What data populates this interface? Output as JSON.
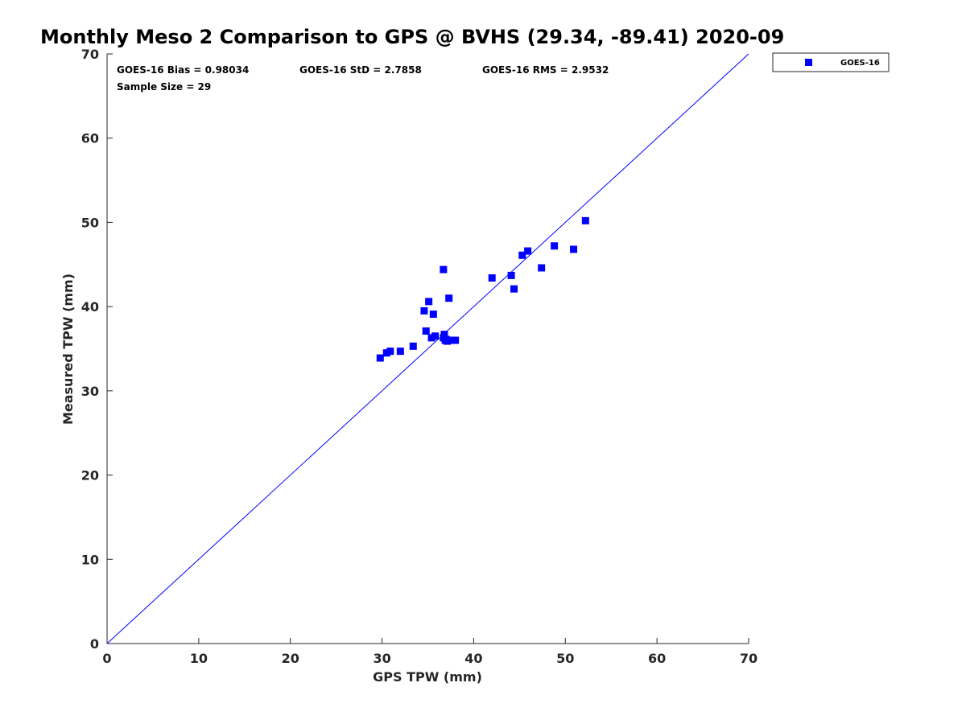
{
  "chart_data": {
    "type": "scatter",
    "title": "Monthly Meso 2 Comparison to GPS @ BVHS (29.34, -89.41) 2020-09",
    "xlabel": "GPS TPW (mm)",
    "ylabel": "Measured TPW (mm)",
    "xlim": [
      0,
      70
    ],
    "ylim": [
      0,
      70
    ],
    "xticks": [
      "0",
      "10",
      "20",
      "30",
      "40",
      "50",
      "60",
      "70"
    ],
    "yticks": [
      "0",
      "10",
      "20",
      "30",
      "40",
      "50",
      "60",
      "70"
    ],
    "grid": false,
    "legend_position": "top-right-outside",
    "reference_line": {
      "name": "1:1 line",
      "x": [
        0,
        70
      ],
      "y": [
        0,
        70
      ],
      "color": "#0000ff"
    },
    "annotations": {
      "bias": "GOES-16 Bias = 0.98034",
      "std": "GOES-16 StD = 2.7858",
      "rms": "GOES-16 RMS = 2.9532",
      "sample_size": "Sample Size = 29"
    },
    "series": [
      {
        "name": "GOES-16",
        "color": "#0000ff",
        "marker": "square",
        "points": [
          [
            29.8,
            33.9
          ],
          [
            30.5,
            34.5
          ],
          [
            30.9,
            34.7
          ],
          [
            32.0,
            34.7
          ],
          [
            33.4,
            35.3
          ],
          [
            34.6,
            39.5
          ],
          [
            34.8,
            37.1
          ],
          [
            35.1,
            40.6
          ],
          [
            35.4,
            36.3
          ],
          [
            35.6,
            39.1
          ],
          [
            35.8,
            36.5
          ],
          [
            36.7,
            36.3
          ],
          [
            36.8,
            36.7
          ],
          [
            36.7,
            44.4
          ],
          [
            37.1,
            35.9
          ],
          [
            37.3,
            41.0
          ],
          [
            37.5,
            36.0
          ],
          [
            38.0,
            36.0
          ],
          [
            42.0,
            43.4
          ],
          [
            44.1,
            43.7
          ],
          [
            44.4,
            42.1
          ],
          [
            45.3,
            46.1
          ],
          [
            45.9,
            46.6
          ],
          [
            47.4,
            44.6
          ],
          [
            48.8,
            47.2
          ],
          [
            50.9,
            46.8
          ],
          [
            52.2,
            50.2
          ],
          [
            37.0,
            36.1
          ],
          [
            36.9,
            36.0
          ]
        ]
      }
    ]
  }
}
